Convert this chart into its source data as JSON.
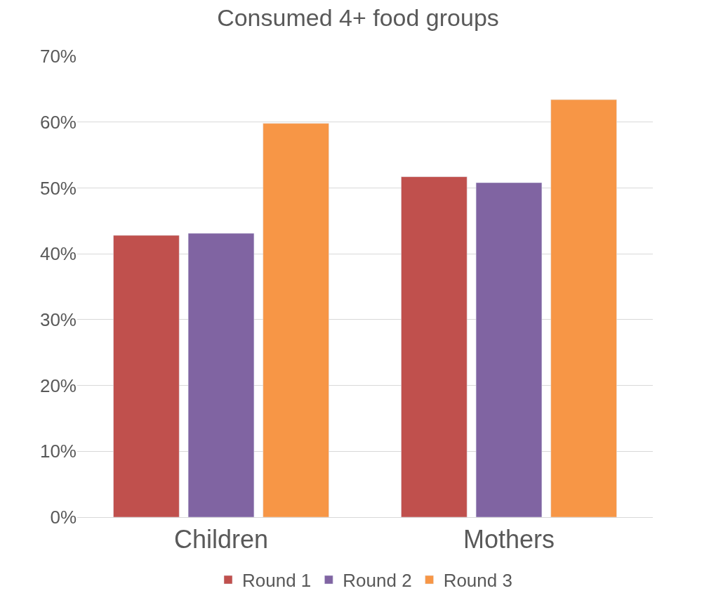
{
  "chart_data": {
    "type": "bar",
    "title": "Consumed 4+ food groups",
    "categories": [
      "Children",
      "Mothers"
    ],
    "series": [
      {
        "name": "Round 1",
        "color": "#c0504d",
        "values": [
          42.8,
          51.7
        ]
      },
      {
        "name": "Round 2",
        "color": "#8064a2",
        "values": [
          43.1,
          50.8
        ]
      },
      {
        "name": "Round 3",
        "color": "#f79646",
        "values": [
          59.8,
          63.4
        ]
      }
    ],
    "ylim": [
      0,
      70
    ],
    "yticks": [
      {
        "value": 0,
        "label": "0%"
      },
      {
        "value": 10,
        "label": "10%"
      },
      {
        "value": 20,
        "label": "20%"
      },
      {
        "value": 30,
        "label": "30%"
      },
      {
        "value": 40,
        "label": "40%"
      },
      {
        "value": 50,
        "label": "50%"
      },
      {
        "value": 60,
        "label": "60%"
      },
      {
        "value": 70,
        "label": "70%"
      }
    ],
    "grid": "y",
    "legend": "bottom"
  }
}
